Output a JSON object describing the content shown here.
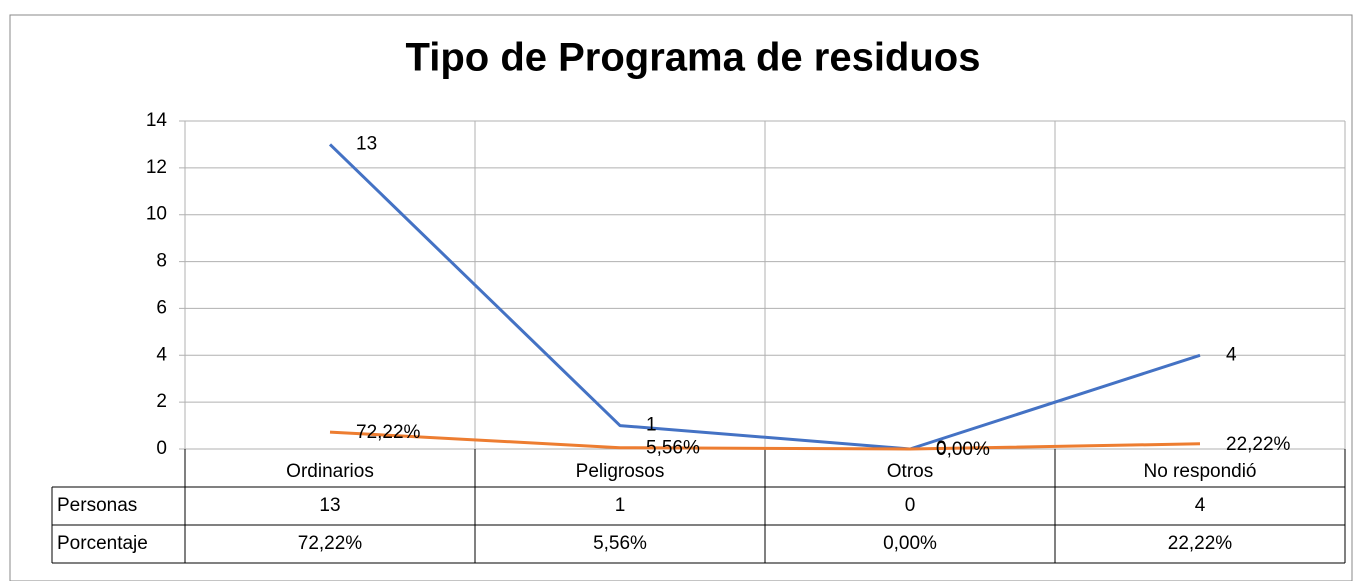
{
  "chart_data": {
    "type": "line",
    "title": "Tipo de Programa de residuos",
    "categories": [
      "Ordinarios",
      "Peligrosos",
      "Otros",
      "No respondió"
    ],
    "series": [
      {
        "name": "Personas",
        "color": "#4472c4",
        "values": [
          13,
          1,
          0,
          4
        ]
      },
      {
        "name": "Porcentaje",
        "color": "#ed7d31",
        "values": [
          0.7222,
          0.0556,
          0,
          0.2222
        ],
        "value_labels": [
          "72,22%",
          "5,56%",
          "0,00%",
          "22,22%"
        ]
      }
    ],
    "ylim": [
      0,
      14
    ],
    "yticks": [
      0,
      2,
      4,
      6,
      8,
      10,
      12,
      14
    ],
    "grid": true
  }
}
